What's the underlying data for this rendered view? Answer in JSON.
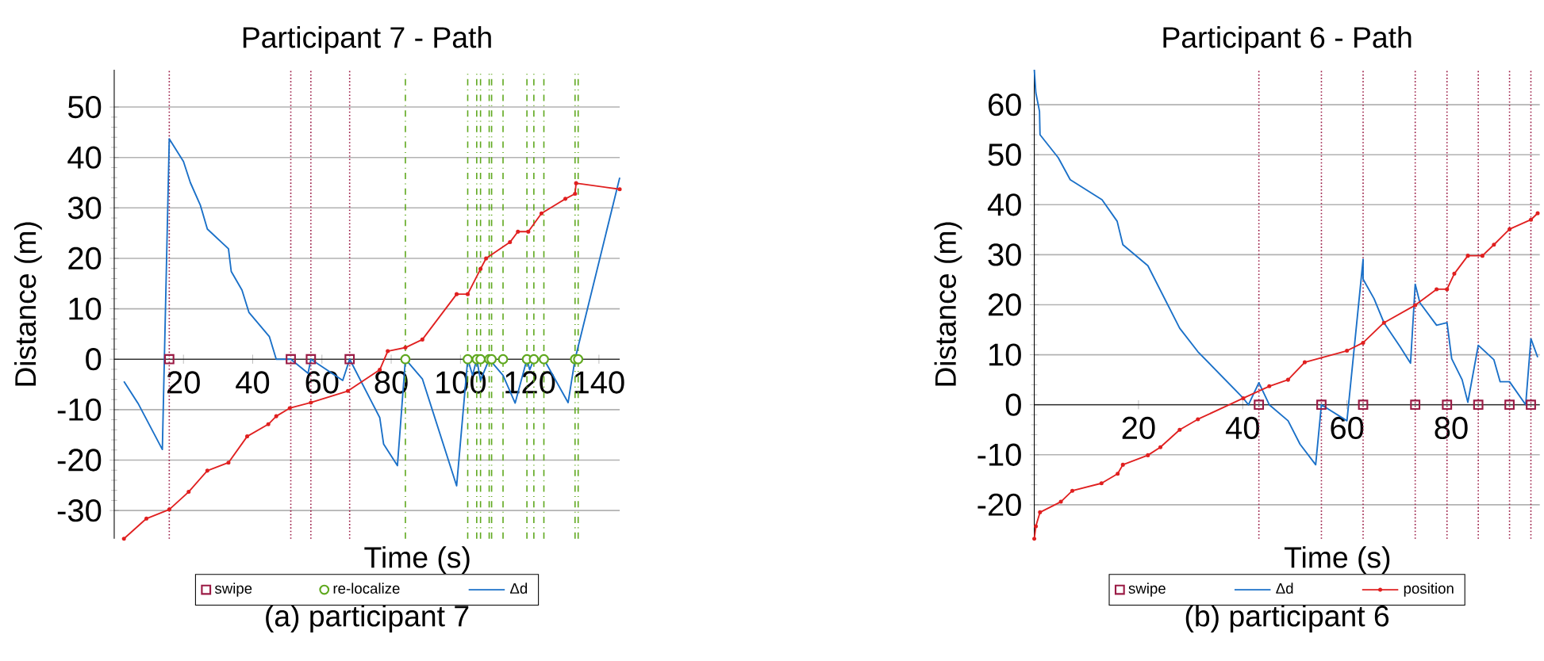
{
  "chart_data": [
    {
      "type": "line",
      "title": "Participant 7 - Path",
      "xlabel": "Time (s)",
      "ylabel": "Distance (m)",
      "xlim": [
        0,
        146
      ],
      "ylim": [
        -35.6,
        57.4
      ],
      "xticks": [
        20,
        40,
        60,
        80,
        100,
        120,
        140
      ],
      "yticks": [
        -30,
        -20,
        -10,
        0,
        10,
        20,
        30,
        40,
        50
      ],
      "grid": "y",
      "legend": "bottom",
      "annotations": [
        "(a) participant 7"
      ],
      "series": [
        {
          "name": "swipe",
          "type": "scatter",
          "color": "#9b1b45",
          "marker": "square",
          "x": [
            15.9,
            51,
            56.8,
            68
          ],
          "values": [
            0,
            0,
            0,
            0
          ]
        },
        {
          "name": "re-localize",
          "type": "scatter",
          "color": "#5fa81e",
          "marker": "circle",
          "x": [
            84.1,
            102.1,
            104.7,
            105.8,
            108.3,
            109,
            112.3,
            119.2,
            121.2,
            124.1,
            133.1,
            134
          ],
          "values": [
            0,
            0,
            0,
            0,
            0,
            0,
            0,
            0,
            0,
            0,
            0,
            0
          ]
        },
        {
          "name": "Δd",
          "color": "#1a70c8",
          "marker": "none",
          "x": [
            2.8,
            7,
            13.9,
            15.9,
            20,
            22,
            24.9,
            26.9,
            33,
            33.8,
            36.9,
            38.9,
            44.8,
            46.8,
            51,
            56,
            56.8,
            66,
            68,
            76.7,
            77.8,
            81.8,
            84.1,
            89,
            98.9,
            102.1,
            103.5,
            104.7,
            105.8,
            108.3,
            112.3,
            115.8,
            119.2,
            120,
            121.2,
            124.1,
            131.1,
            133.1,
            146
          ],
          "values": [
            -4.4,
            -8.9,
            -17.9,
            43.7,
            39.2,
            35,
            30.5,
            25.8,
            21.9,
            17.4,
            13.7,
            9.3,
            4.5,
            0,
            0,
            -2.8,
            0,
            -4.2,
            0,
            -11.6,
            -16.8,
            -21.1,
            0,
            -3.9,
            -25.1,
            0,
            -3.2,
            0,
            -4.2,
            0,
            -3.2,
            -8.7,
            0,
            -2.1,
            0,
            0,
            -8.6,
            0,
            36
          ]
        },
        {
          "color": "#e02020",
          "marker": "circle",
          "x": [
            2.8,
            9.3,
            15.9,
            21.5,
            26.9,
            33,
            38.4,
            44.5,
            46.8,
            50.7,
            56.8,
            67.5,
            76.7,
            79,
            84.1,
            89,
            98.9,
            102.1,
            105.8,
            107.4,
            114.3,
            116.6,
            119.6,
            123.4,
            130.3,
            133.1,
            133.4,
            146
          ],
          "values": [
            -35.6,
            -31.6,
            -29.8,
            -26.3,
            -22.1,
            -20.5,
            -15.3,
            -12.9,
            -11.3,
            -9.7,
            -8.6,
            -6.3,
            -2.1,
            1.6,
            2.3,
            3.9,
            12.9,
            12.9,
            17.9,
            20,
            23.2,
            25.3,
            25.3,
            28.9,
            31.8,
            32.8,
            34.9,
            33.7
          ]
        }
      ],
      "ref_lines": [
        {
          "axis": "x",
          "value": 15.9,
          "color": "#9b1b45",
          "line_style": "dotted"
        },
        {
          "axis": "x",
          "value": 51,
          "color": "#9b1b45",
          "line_style": "dotted"
        },
        {
          "axis": "x",
          "value": 56.8,
          "color": "#9b1b45",
          "line_style": "dotted"
        },
        {
          "axis": "x",
          "value": 68,
          "color": "#9b1b45",
          "line_style": "dotted"
        },
        {
          "axis": "x",
          "value": 84.1,
          "color": "#5fa81e",
          "line_style": "dashed"
        },
        {
          "axis": "x",
          "value": 102.1,
          "color": "#5fa81e",
          "line_style": "dashed"
        },
        {
          "axis": "x",
          "value": 104.7,
          "color": "#5fa81e",
          "line_style": "dashed"
        },
        {
          "axis": "x",
          "value": 105.8,
          "color": "#5fa81e",
          "line_style": "dashed"
        },
        {
          "axis": "x",
          "value": 108.3,
          "color": "#5fa81e",
          "line_style": "dashed"
        },
        {
          "axis": "x",
          "value": 109,
          "color": "#5fa81e",
          "line_style": "dashed"
        },
        {
          "axis": "x",
          "value": 112.3,
          "color": "#5fa81e",
          "line_style": "dashed"
        },
        {
          "axis": "x",
          "value": 119.2,
          "color": "#5fa81e",
          "line_style": "dashed"
        },
        {
          "axis": "x",
          "value": 121.2,
          "color": "#5fa81e",
          "line_style": "dashed"
        },
        {
          "axis": "x",
          "value": 124.1,
          "color": "#5fa81e",
          "line_style": "dashed"
        },
        {
          "axis": "x",
          "value": 133.1,
          "color": "#5fa81e",
          "line_style": "dashed"
        },
        {
          "axis": "x",
          "value": 134,
          "color": "#5fa81e",
          "line_style": "dashed"
        }
      ]
    },
    {
      "type": "line",
      "title": "Participant 6 - Path",
      "xlabel": "Time (s)",
      "ylabel": "Distance (m)",
      "xlim": [
        0,
        97
      ],
      "ylim": [
        -26.8,
        67
      ],
      "xticks": [
        20,
        40,
        60,
        80
      ],
      "yticks": [
        -20,
        -10,
        0,
        10,
        20,
        30,
        40,
        50,
        60
      ],
      "grid": "y",
      "legend": "bottom",
      "annotations": [
        "(b) participant 6"
      ],
      "series": [
        {
          "name": "swipe",
          "type": "scatter",
          "color": "#9b1b45",
          "marker": "square",
          "x": [
            43.1,
            55.1,
            63.1,
            73.1,
            79.2,
            85.2,
            91.2,
            95.3
          ],
          "values": [
            0,
            0,
            0,
            0,
            0,
            0,
            0,
            0
          ]
        },
        {
          "name": "Δd",
          "color": "#1a70c8",
          "marker": "none",
          "x": [
            0,
            0.3,
            1,
            1.1,
            4.6,
            6.9,
            13,
            15.9,
            17,
            21.8,
            27.9,
            31.4,
            40.1,
            41.1,
            43.1,
            45.1,
            48.7,
            51,
            54,
            55.1,
            60,
            63.1,
            63.1,
            65.2,
            67.1,
            70.2,
            72.2,
            73.1,
            74,
            77.2,
            79.2,
            80.1,
            82.1,
            83.2,
            85.2,
            88.2,
            89.4,
            91.2,
            94.3,
            95.3,
            96.6
          ],
          "values": [
            67,
            62.4,
            58.7,
            54,
            49.4,
            45,
            41,
            36.7,
            32,
            27.8,
            15.3,
            10.6,
            1.3,
            0,
            4.4,
            0,
            -3.2,
            -7.9,
            -12,
            0,
            -3.2,
            29.1,
            25.1,
            21.2,
            16.4,
            11.6,
            8.3,
            24.1,
            20.4,
            15.9,
            16.4,
            9.2,
            5,
            0.5,
            11.9,
            9,
            4.6,
            4.6,
            0,
            13.2,
            9.5
          ]
        },
        {
          "name": "position",
          "color": "#e02020",
          "marker": "circle",
          "x": [
            0,
            0.3,
            1.1,
            5.1,
            7.3,
            12.9,
            16,
            17,
            21.8,
            24.2,
            27.9,
            31.4,
            40.1,
            45.1,
            48.7,
            51.9,
            60,
            63.1,
            67.1,
            73.1,
            77.2,
            79.2,
            80.6,
            83.2,
            86,
            88.2,
            91.2,
            95.3,
            96.6
          ],
          "values": [
            -26.8,
            -24.3,
            -21.5,
            -19.4,
            -17.2,
            -15.7,
            -13.8,
            -12,
            -10.1,
            -8.5,
            -5,
            -2.9,
            1.3,
            3.7,
            5,
            8.5,
            10.8,
            12.4,
            16.4,
            19.9,
            23.1,
            23.1,
            26.2,
            29.8,
            29.8,
            32,
            35.1,
            37,
            38.3
          ]
        }
      ],
      "ref_lines": [
        {
          "axis": "x",
          "value": 43.1,
          "color": "#9b1b45",
          "line_style": "dotted"
        },
        {
          "axis": "x",
          "value": 55.1,
          "color": "#9b1b45",
          "line_style": "dotted"
        },
        {
          "axis": "x",
          "value": 63.1,
          "color": "#9b1b45",
          "line_style": "dotted"
        },
        {
          "axis": "x",
          "value": 73.1,
          "color": "#9b1b45",
          "line_style": "dotted"
        },
        {
          "axis": "x",
          "value": 79.2,
          "color": "#9b1b45",
          "line_style": "dotted"
        },
        {
          "axis": "x",
          "value": 85.2,
          "color": "#9b1b45",
          "line_style": "dotted"
        },
        {
          "axis": "x",
          "value": 91.2,
          "color": "#9b1b45",
          "line_style": "dotted"
        },
        {
          "axis": "x",
          "value": 95.3,
          "color": "#9b1b45",
          "line_style": "dotted"
        }
      ]
    }
  ]
}
